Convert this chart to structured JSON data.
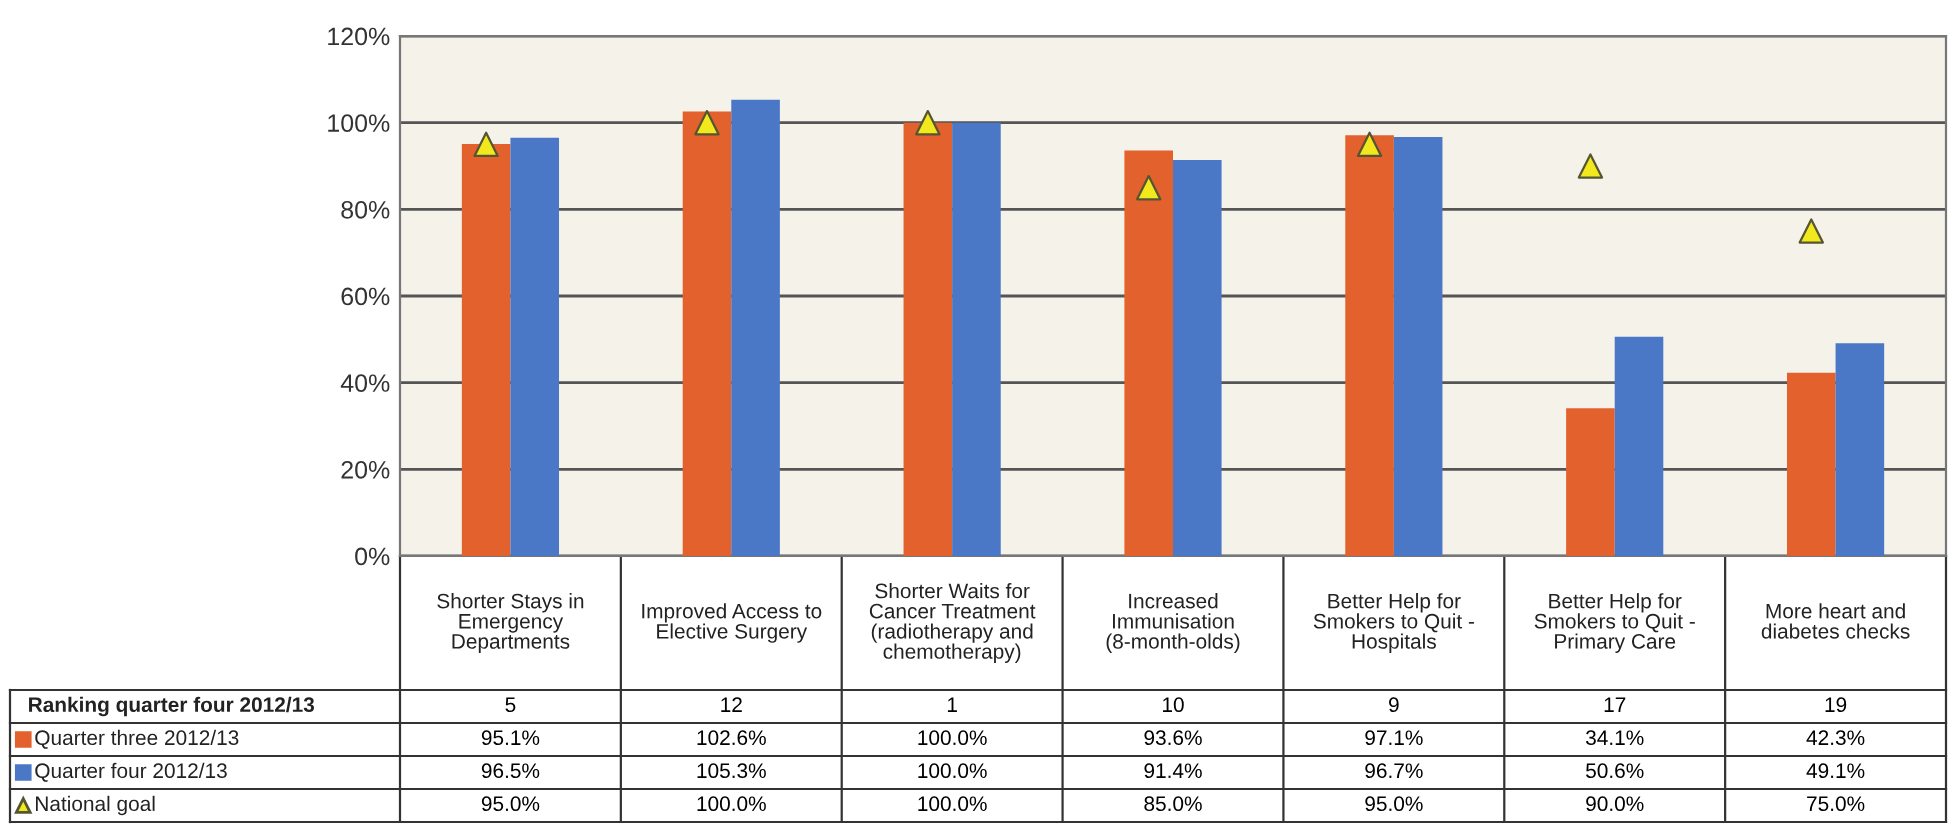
{
  "chart_data": {
    "type": "bar",
    "categories": [
      "Shorter Stays in Emergency Departments",
      "Improved Access to Elective Surgery",
      "Shorter Waits for Cancer Treatment (radiotherapy and chemotherapy)",
      "Increased Immunisation (8-month-olds)",
      "Better Help for Smokers to Quit - Hospitals",
      "Better Help for Smokers to Quit - Primary Care",
      "More heart and diabetes checks"
    ],
    "series": [
      {
        "name": "Quarter three 2012/13",
        "color": "#e2612c",
        "values": [
          95.1,
          102.6,
          100.0,
          93.6,
          97.1,
          34.1,
          42.3
        ],
        "value_labels": [
          "95.1%",
          "102.6%",
          "100.0%",
          "93.6%",
          "97.1%",
          "34.1%",
          "42.3%"
        ]
      },
      {
        "name": "Quarter four 2012/13",
        "color": "#4a78c6",
        "values": [
          96.5,
          105.3,
          100.0,
          91.4,
          96.7,
          50.6,
          49.1
        ],
        "value_labels": [
          "96.5%",
          "105.3%",
          "100.0%",
          "91.4%",
          "96.7%",
          "50.6%",
          "49.1%"
        ]
      },
      {
        "name": "National goal",
        "color": "#f2e81e",
        "type": "scatter",
        "marker": "triangle",
        "values": [
          95.0,
          100.0,
          100.0,
          85.0,
          95.0,
          90.0,
          75.0
        ],
        "value_labels": [
          "95.0%",
          "100.0%",
          "100.0%",
          "85.0%",
          "95.0%",
          "90.0%",
          "75.0%"
        ]
      }
    ],
    "ylim": [
      0,
      120
    ],
    "yticks": [
      {
        "value": 0,
        "label": "0%"
      },
      {
        "value": 20,
        "label": "20%"
      },
      {
        "value": 40,
        "label": "40%"
      },
      {
        "value": 60,
        "label": "60%"
      },
      {
        "value": 80,
        "label": "80%"
      },
      {
        "value": 100,
        "label": "100%"
      },
      {
        "value": 120,
        "label": "120%"
      }
    ],
    "grid": "y",
    "legend": "bottom left",
    "annotations": [
      "Ranking quarter four 2012/13",
      "5",
      "12",
      "1",
      "10",
      "9",
      "17",
      "19"
    ]
  }
}
